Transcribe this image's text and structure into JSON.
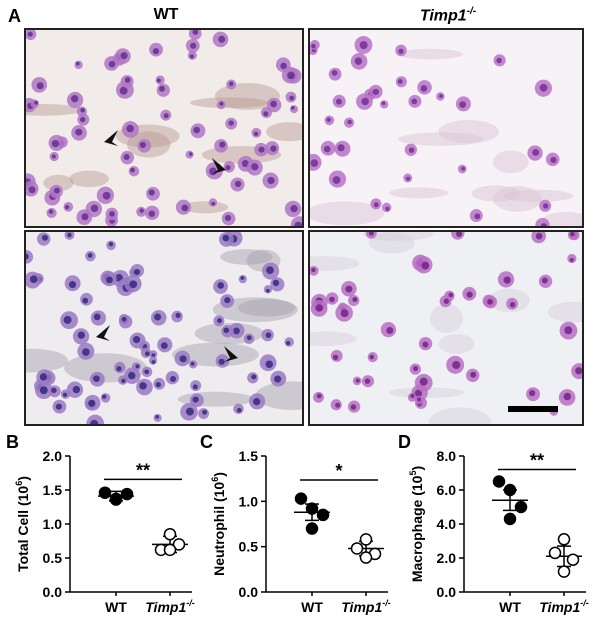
{
  "figure": {
    "panel_a_letter": "A",
    "panel_b_letter": "B",
    "panel_c_letter": "C",
    "panel_d_letter": "D",
    "col_wt": "WT",
    "col_ko": "Timp1",
    "col_ko_sup": "-/-"
  },
  "micrographs": [
    {
      "name": "wt-top",
      "style": "dense-neutrophils-with-arrows",
      "palette": {
        "bg": "#f1ece9",
        "cell": "#b276c6",
        "dark": "#5b2a8a",
        "mucus": "#b89a90"
      }
    },
    {
      "name": "ko-top",
      "style": "sparse-cells",
      "palette": {
        "bg": "#f6f2f6",
        "cell": "#b873c9",
        "dark": "#6a2c8c",
        "mucus": "#d9c1d2"
      }
    },
    {
      "name": "wt-bottom",
      "style": "dense-neutrophils-with-arrows",
      "palette": {
        "bg": "#eeecee",
        "cell": "#9b79c4",
        "dark": "#2b2378",
        "mucus": "#a5a0aa"
      }
    },
    {
      "name": "ko-bottom",
      "style": "sparse-cells-scalebar",
      "palette": {
        "bg": "#eef0f4",
        "cell": "#b96ec4",
        "dark": "#6a1f7f",
        "mucus": "#d5cbd8"
      }
    }
  ],
  "chart_data": [
    {
      "type": "scatter",
      "panel": "B",
      "ylabel": "Total Cell (10",
      "ylabel_sup": "6",
      "ylabel_close": ")",
      "ylim": [
        0.0,
        2.0
      ],
      "yticks": [
        "0.0",
        "0.5",
        "1.0",
        "1.5",
        "2.0"
      ],
      "ytick_values": [
        0.0,
        0.5,
        1.0,
        1.5,
        2.0
      ],
      "categories": [
        "WT",
        "Timp1"
      ],
      "category_sup": [
        "",
        "-/-"
      ],
      "series": [
        {
          "group": "WT",
          "filled": true,
          "values": [
            1.46,
            1.36,
            1.44,
            1.37
          ],
          "mean": 1.41,
          "sem": 0.07
        },
        {
          "group": "Timp1-/-",
          "filled": false,
          "values": [
            0.85,
            0.62,
            0.7,
            0.62
          ],
          "mean": 0.7,
          "sem": 0.12
        }
      ],
      "significance": "**"
    },
    {
      "type": "scatter",
      "panel": "C",
      "ylabel": "Neutrophil (10",
      "ylabel_sup": "6",
      "ylabel_close": ")",
      "ylim": [
        0.0,
        1.5
      ],
      "yticks": [
        "0.0",
        "0.5",
        "1.0",
        "1.5"
      ],
      "ytick_values": [
        0.0,
        0.5,
        1.0,
        1.5
      ],
      "categories": [
        "WT",
        "Timp1"
      ],
      "category_sup": [
        "",
        "-/-"
      ],
      "series": [
        {
          "group": "WT",
          "filled": true,
          "values": [
            1.03,
            0.92,
            0.85,
            0.7
          ],
          "mean": 0.88,
          "sem": 0.09
        },
        {
          "group": "Timp1-/-",
          "filled": false,
          "values": [
            0.58,
            0.48,
            0.42,
            0.38
          ],
          "mean": 0.48,
          "sem": 0.08
        }
      ],
      "significance": "*"
    },
    {
      "type": "scatter",
      "panel": "D",
      "ylabel": "Macrophage (10",
      "ylabel_sup": "5",
      "ylabel_close": ")",
      "ylim": [
        0.0,
        8.0
      ],
      "yticks": [
        "0.0",
        "2.0",
        "4.0",
        "6.0",
        "8.0"
      ],
      "ytick_values": [
        0.0,
        2.0,
        4.0,
        6.0,
        8.0
      ],
      "categories": [
        "WT",
        "Timp1"
      ],
      "category_sup": [
        "",
        "-/-"
      ],
      "series": [
        {
          "group": "WT",
          "filled": true,
          "values": [
            6.5,
            6.0,
            5.0,
            4.3
          ],
          "mean": 5.4,
          "sem": 0.6
        },
        {
          "group": "Timp1-/-",
          "filled": false,
          "values": [
            3.1,
            2.3,
            1.9,
            1.2
          ],
          "mean": 2.1,
          "sem": 0.6
        }
      ],
      "significance": "**"
    }
  ]
}
